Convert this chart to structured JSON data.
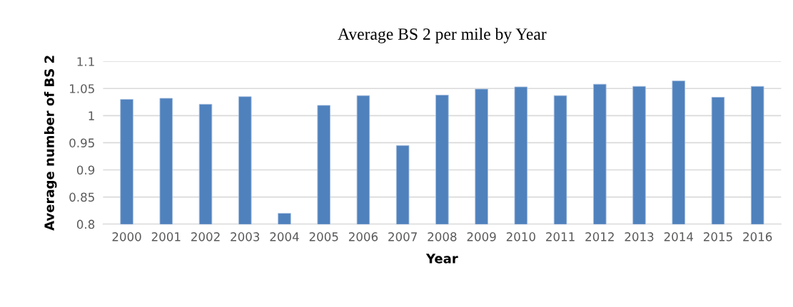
{
  "chart_data": {
    "type": "bar",
    "title": "Average BS 2 per mile by Year",
    "xlabel": "Year",
    "ylabel": "Average number of BS 2",
    "categories": [
      "2000",
      "2001",
      "2002",
      "2003",
      "2004",
      "2005",
      "2006",
      "2007",
      "2008",
      "2009",
      "2010",
      "2011",
      "2012",
      "2013",
      "2014",
      "2015",
      "2016"
    ],
    "values": [
      1.03,
      1.032,
      1.021,
      1.035,
      0.82,
      1.019,
      1.037,
      0.945,
      1.038,
      1.049,
      1.053,
      1.037,
      1.058,
      1.054,
      1.064,
      1.034,
      1.054
    ],
    "color": "#4f81bd",
    "ylim": [
      0.8,
      1.1
    ],
    "yticks": [
      {
        "value": 0.8,
        "label": "0.8"
      },
      {
        "value": 0.85,
        "label": "0.85"
      },
      {
        "value": 0.9,
        "label": "0.9"
      },
      {
        "value": 0.95,
        "label": "0.95"
      },
      {
        "value": 1.0,
        "label": "1"
      },
      {
        "value": 1.05,
        "label": "1.05"
      },
      {
        "value": 1.1,
        "label": "1.1"
      }
    ],
    "grid": "y"
  }
}
